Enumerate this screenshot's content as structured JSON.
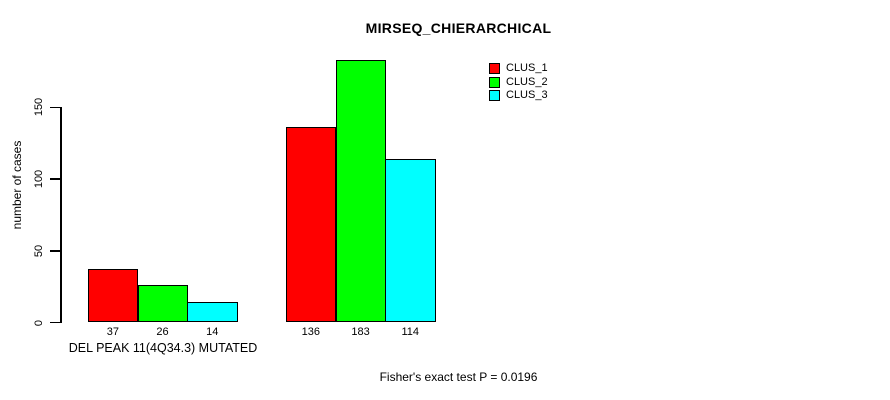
{
  "chart_data": {
    "type": "bar",
    "title": "MIRSEQ_CHIERARCHICAL",
    "ylabel": "number of cases",
    "xlabel": "",
    "ylim": [
      0,
      150
    ],
    "yticks": [
      0,
      50,
      100,
      150
    ],
    "grid": false,
    "legend_position": "top-right",
    "series_names": [
      "CLUS_1",
      "CLUS_2",
      "CLUS_3"
    ],
    "colors": [
      "#ff0000",
      "#00ff00",
      "#00ffff"
    ],
    "groups": [
      {
        "label": "DEL PEAK 11(4Q34.3) MUTATED",
        "values": [
          37,
          26,
          14
        ]
      },
      {
        "label": "",
        "values": [
          136,
          183,
          114
        ]
      }
    ],
    "annotation": "Fisher's exact test P = 0.0196"
  }
}
